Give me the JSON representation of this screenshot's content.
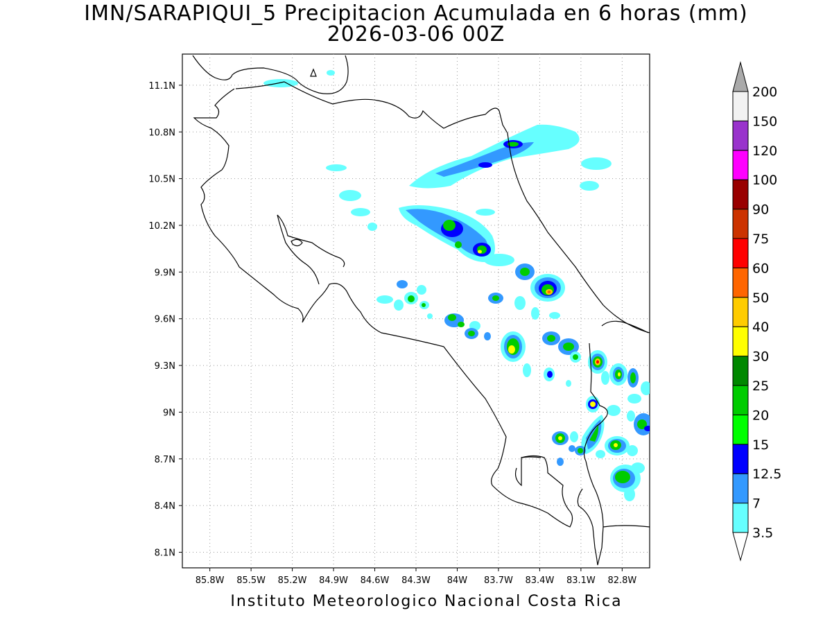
{
  "header": {
    "title_line1": "IMN/SARAPIQUI_5 Precipitacion Acumulada en 6 horas (mm)",
    "title_line2": "2026-03-06 00Z"
  },
  "footer": {
    "credit": "Instituto Meteorologico Nacional Costa Rica"
  },
  "map": {
    "lon_range": [
      -86.0,
      -82.6
    ],
    "lat_range": [
      8.0,
      11.3
    ],
    "lon_ticks": [
      {
        "v": -85.8,
        "label": "85.8W"
      },
      {
        "v": -85.5,
        "label": "85.5W"
      },
      {
        "v": -85.2,
        "label": "85.2W"
      },
      {
        "v": -84.9,
        "label": "84.9W"
      },
      {
        "v": -84.6,
        "label": "84.6W"
      },
      {
        "v": -84.3,
        "label": "84.3W"
      },
      {
        "v": -84.0,
        "label": "84W"
      },
      {
        "v": -83.7,
        "label": "83.7W"
      },
      {
        "v": -83.4,
        "label": "83.4W"
      },
      {
        "v": -83.1,
        "label": "83.1W"
      },
      {
        "v": -82.8,
        "label": "82.8W"
      }
    ],
    "lat_ticks": [
      {
        "v": 11.1,
        "label": "11.1N"
      },
      {
        "v": 10.8,
        "label": "10.8N"
      },
      {
        "v": 10.5,
        "label": "10.5N"
      },
      {
        "v": 10.2,
        "label": "10.2N"
      },
      {
        "v": 9.9,
        "label": "9.9N"
      },
      {
        "v": 9.6,
        "label": "9.6N"
      },
      {
        "v": 9.3,
        "label": "9.3N"
      },
      {
        "v": 9.0,
        "label": "9N"
      },
      {
        "v": 8.7,
        "label": "8.7N"
      },
      {
        "v": 8.4,
        "label": "8.4N"
      },
      {
        "v": 8.1,
        "label": "8.1N"
      }
    ],
    "grid": "dotted"
  },
  "colorbar": {
    "labels": [
      "3.5",
      "7",
      "12.5",
      "15",
      "20",
      "25",
      "30",
      "40",
      "50",
      "60",
      "75",
      "90",
      "100",
      "120",
      "150",
      "200"
    ],
    "colors": [
      "#66ffff",
      "#3399ff",
      "#0000ff",
      "#00ff00",
      "#00cc00",
      "#008800",
      "#ffff00",
      "#ffcc00",
      "#ff6600",
      "#ff0000",
      "#cc3300",
      "#990000",
      "#ff00ff",
      "#9933cc",
      "#f2f2f2",
      "#aaaaaa"
    ],
    "over_color": "#aaaaaa",
    "under_color": "#ffffff"
  }
}
